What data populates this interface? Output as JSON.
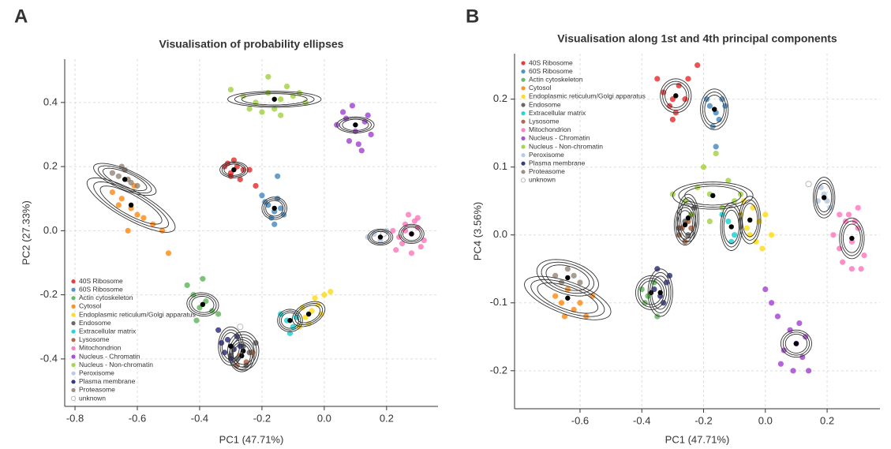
{
  "chart_data": [
    {
      "type": "scatter",
      "panel_label": "A",
      "title": "Visualisation of probability ellipses",
      "x_label": "PC1 (47.71%)",
      "y_label": "PC2 (27.33%)",
      "xlim": [
        -0.833,
        0.365
      ],
      "ylim": [
        -0.548,
        0.535
      ],
      "xticks": [
        -0.8,
        -0.6,
        -0.4,
        -0.2,
        {
          "value": 0,
          "label": "0.0"
        },
        0.2
      ],
      "yticks": [
        -0.4,
        -0.2,
        {
          "value": 0,
          "label": "0.0"
        },
        0.2,
        0.4
      ],
      "grid": true,
      "legend": "lower left",
      "ellipse_scales": [
        0.7,
        0.85,
        1
      ],
      "series": [
        {
          "name": "40S Ribosome",
          "color": "#e41a1c",
          "x": [
            -0.32,
            -0.3,
            -0.28,
            -0.26,
            -0.3,
            -0.27,
            -0.31,
            -0.24,
            -0.22,
            -0.29
          ],
          "y": [
            0.2,
            0.18,
            0.2,
            0.19,
            0.17,
            0.16,
            0.21,
            0.19,
            0.14,
            0.22
          ],
          "center": [
            -0.29,
            0.19
          ],
          "ellipse": [
            0.045,
            0,
            0,
            0.025
          ]
        },
        {
          "name": "60S Ribosome",
          "color": "#377eb8",
          "x": [
            -0.18,
            -0.16,
            -0.14,
            -0.17,
            -0.15,
            -0.19,
            -0.13,
            -0.16,
            -0.15,
            -0.2
          ],
          "y": [
            0.08,
            0.06,
            0.07,
            0.04,
            0.1,
            0.09,
            0.05,
            0.02,
            0.17,
            0.11
          ],
          "center": [
            -0.16,
            0.07
          ],
          "ellipse": [
            0.04,
            0,
            0,
            0.035
          ]
        },
        {
          "name": "Actin cytoskeleton",
          "color": "#4daf4a",
          "x": [
            -0.42,
            -0.4,
            -0.38,
            -0.36,
            -0.44,
            -0.39,
            -0.34,
            -0.41
          ],
          "y": [
            -0.2,
            -0.24,
            -0.22,
            -0.25,
            -0.17,
            -0.15,
            -0.26,
            -0.28
          ],
          "center": [
            -0.39,
            -0.23
          ],
          "ellipse": [
            0.05,
            -0.01,
            0.01,
            0.035
          ]
        },
        {
          "name": "Cytosol",
          "color": "#ff7f00",
          "x": [
            -0.68,
            -0.65,
            -0.62,
            -0.6,
            -0.58,
            -0.55,
            -0.63,
            -0.66,
            -0.52,
            -0.5,
            -0.61
          ],
          "y": [
            0.12,
            0.1,
            0.07,
            0.05,
            0.04,
            0.02,
            0.0,
            0.08,
            0.0,
            -0.07,
            0.14
          ],
          "center": [
            -0.62,
            0.08
          ],
          "ellipse": [
            0.14,
            -0.075,
            0.02,
            0.04
          ]
        },
        {
          "name": "Endoplasmic reticulum/Golgi apparatus",
          "color": "#ffd700",
          "x": [
            -0.06,
            -0.04,
            -0.02,
            0.0,
            -0.05,
            -0.03,
            -0.08,
            0.02,
            -0.01,
            -0.07
          ],
          "y": [
            -0.27,
            -0.25,
            -0.23,
            -0.2,
            -0.29,
            -0.21,
            -0.3,
            -0.19,
            -0.26,
            -0.24
          ],
          "center": [
            -0.05,
            -0.26
          ],
          "ellipse": [
            0.05,
            0.025,
            -0.015,
            0.03
          ]
        },
        {
          "name": "Endosome",
          "color": "#4d4d4d",
          "x": [
            -0.26,
            -0.24,
            -0.28,
            -0.22,
            -0.3,
            -0.25
          ],
          "y": [
            -0.36,
            -0.38,
            -0.4,
            -0.35,
            -0.39,
            -0.42
          ],
          "center": [
            -0.26,
            -0.375
          ],
          "ellipse": [
            0.05,
            0,
            0,
            0.06
          ]
        },
        {
          "name": "Extracellular matrix",
          "color": "#00ced1",
          "x": [
            -0.12,
            -0.1,
            -0.14,
            -0.09,
            -0.11
          ],
          "y": [
            -0.28,
            -0.3,
            -0.26,
            -0.27,
            -0.32
          ],
          "center": [
            -0.11,
            -0.28
          ],
          "ellipse": [
            0.04,
            0,
            0,
            0.035
          ]
        },
        {
          "name": "Lysosome",
          "color": "#a0522d",
          "x": [
            -0.27,
            -0.25,
            -0.23,
            -0.28
          ],
          "y": [
            -0.39,
            -0.41,
            -0.38,
            -0.42
          ],
          "center": [
            -0.265,
            -0.39
          ],
          "ellipse": [
            0.04,
            0,
            0,
            0.05
          ]
        },
        {
          "name": "Mitochondrion",
          "color": "#ff69b4",
          "x": [
            0.22,
            0.24,
            0.26,
            0.28,
            0.3,
            0.32,
            0.25,
            0.27,
            0.29,
            0.31,
            0.23,
            0.26,
            0.3,
            0.28
          ],
          "y": [
            0.0,
            -0.02,
            0.02,
            -0.01,
            0.01,
            -0.03,
            -0.04,
            0.05,
            0.03,
            -0.05,
            -0.06,
            0.0,
            0.04,
            -0.07
          ],
          "center": [
            0.28,
            -0.01
          ],
          "ellipse": [
            0.04,
            0,
            0,
            0.03
          ]
        },
        {
          "name": "Nucleus - Chromatin",
          "color": "#9932cc",
          "x": [
            0.04,
            0.07,
            0.1,
            0.13,
            0.15,
            0.08,
            0.11,
            0.06,
            0.14,
            0.12,
            0.09
          ],
          "y": [
            0.33,
            0.35,
            0.31,
            0.34,
            0.3,
            0.28,
            0.27,
            0.37,
            0.36,
            0.25,
            0.39
          ],
          "center": [
            0.1,
            0.33
          ],
          "ellipse": [
            0.06,
            0,
            0,
            0.025
          ]
        },
        {
          "name": "Nucleus - Non-chromatin",
          "color": "#9acd32",
          "x": [
            -0.3,
            -0.26,
            -0.22,
            -0.18,
            -0.14,
            -0.1,
            -0.06,
            -0.2,
            -0.16,
            -0.12,
            -0.24,
            -0.18,
            -0.08,
            -0.14
          ],
          "y": [
            0.44,
            0.42,
            0.4,
            0.43,
            0.41,
            0.42,
            0.4,
            0.37,
            0.38,
            0.45,
            0.38,
            0.48,
            0.43,
            0.36
          ],
          "center": [
            -0.16,
            0.41
          ],
          "ellipse": [
            0.15,
            0,
            0,
            0.025
          ]
        },
        {
          "name": "Peroxisome",
          "color": "#b0c4de",
          "x": [
            0.16,
            0.18,
            0.2,
            0.14
          ],
          "y": [
            -0.01,
            -0.03,
            0.0,
            -0.02
          ],
          "center": [
            0.18,
            -0.02
          ],
          "ellipse": [
            0.04,
            0,
            0,
            0.025
          ]
        },
        {
          "name": "Plasma membrane",
          "color": "#191970",
          "x": [
            -0.33,
            -0.31,
            -0.29,
            -0.32,
            -0.28,
            -0.3,
            -0.34,
            -0.27
          ],
          "y": [
            -0.35,
            -0.34,
            -0.37,
            -0.38,
            -0.33,
            -0.4,
            -0.31,
            -0.36
          ],
          "center": [
            -0.3,
            -0.36
          ],
          "ellipse": [
            0.04,
            0,
            0,
            0.06
          ]
        },
        {
          "name": "Proteasome",
          "color": "#8c7b6b",
          "x": [
            -0.68,
            -0.66,
            -0.64,
            -0.62,
            -0.6,
            -0.65,
            -0.63
          ],
          "y": [
            0.18,
            0.17,
            0.19,
            0.15,
            0.14,
            0.2,
            0.16
          ],
          "center": [
            -0.64,
            0.16
          ],
          "ellipse": [
            0.1,
            -0.04,
            0.01,
            0.03
          ]
        },
        {
          "name": "unknown",
          "color": "#ffffff",
          "x": [
            -0.27,
            0.19
          ],
          "y": [
            -0.3,
            -0.01
          ]
        }
      ]
    },
    {
      "type": "scatter",
      "panel_label": "B",
      "title": "Visualisation along 1st and 4th principal components",
      "x_label": "PC1 (47.71%)",
      "y_label": "PC4 (3.56%)",
      "xlim": [
        -0.812,
        0.371
      ],
      "ylim": [
        -0.256,
        0.267
      ],
      "xticks": [
        -0.6,
        -0.4,
        -0.2,
        {
          "value": 0,
          "label": "0.0"
        },
        0.2
      ],
      "yticks": [
        -0.2,
        -0.1,
        {
          "value": 0,
          "label": "0.0"
        },
        0.1,
        0.2
      ],
      "grid": true,
      "legend": "upper left",
      "ellipse_scales": [
        0.7,
        0.85,
        1
      ],
      "series": [
        {
          "name": "40S Ribosome",
          "color": "#e41a1c",
          "x": [
            -0.33,
            -0.3,
            -0.28,
            -0.26,
            -0.31,
            -0.29,
            -0.25,
            -0.35,
            -0.22,
            -0.3
          ],
          "y": [
            0.21,
            0.2,
            0.22,
            0.2,
            0.19,
            0.18,
            0.23,
            0.23,
            0.25,
            0.17
          ],
          "center": [
            -0.29,
            0.205
          ],
          "ellipse": [
            0.05,
            0,
            0,
            0.025
          ]
        },
        {
          "name": "60S Ribosome",
          "color": "#377eb8",
          "x": [
            -0.18,
            -0.16,
            -0.14,
            -0.17,
            -0.15,
            -0.13,
            -0.19,
            -0.16
          ],
          "y": [
            0.19,
            0.18,
            0.2,
            0.16,
            0.17,
            0.19,
            0.2,
            0.13
          ],
          "center": [
            -0.165,
            0.185
          ],
          "ellipse": [
            0.045,
            0,
            0,
            0.03
          ]
        },
        {
          "name": "Actin cytoskeleton",
          "color": "#4daf4a",
          "x": [
            -0.4,
            -0.38,
            -0.36,
            -0.39,
            -0.35
          ],
          "y": [
            -0.08,
            -0.09,
            -0.07,
            -0.1,
            -0.12
          ],
          "center": [
            -0.37,
            -0.085
          ],
          "ellipse": [
            0.05,
            0,
            0,
            0.025
          ]
        },
        {
          "name": "Cytosol",
          "color": "#ff7f00",
          "x": [
            -0.68,
            -0.66,
            -0.64,
            -0.62,
            -0.6,
            -0.58,
            -0.65,
            -0.56
          ],
          "y": [
            -0.09,
            -0.1,
            -0.08,
            -0.11,
            -0.1,
            -0.12,
            -0.12,
            -0.09
          ],
          "center": [
            -0.64,
            -0.093
          ],
          "ellipse": [
            0.14,
            -0.02,
            0,
            0.025
          ]
        },
        {
          "name": "Endoplasmic reticulum/Golgi apparatus",
          "color": "#ffd700",
          "x": [
            -0.08,
            -0.06,
            -0.04,
            -0.02,
            -0.05,
            -0.03,
            -0.07,
            0.0,
            0.02,
            -0.01
          ],
          "y": [
            0.03,
            0.01,
            0.04,
            0.02,
            0.0,
            -0.01,
            0.05,
            0.03,
            0.0,
            -0.02
          ],
          "center": [
            -0.05,
            0.022
          ],
          "ellipse": [
            0.035,
            0,
            0,
            0.035
          ]
        },
        {
          "name": "Endosome",
          "color": "#4d4d4d",
          "x": [
            -0.26,
            -0.24,
            -0.28,
            -0.23,
            -0.25
          ],
          "y": [
            0.02,
            0.03,
            0.01,
            0.04,
            0.0
          ],
          "center": [
            -0.25,
            0.025
          ],
          "ellipse": [
            0.035,
            0,
            0,
            0.035
          ]
        },
        {
          "name": "Extracellular matrix",
          "color": "#00ced1",
          "x": [
            -0.12,
            -0.1,
            -0.14,
            -0.11
          ],
          "y": [
            0.02,
            0.0,
            0.03,
            -0.01
          ],
          "center": [
            -0.11,
            0.012
          ],
          "ellipse": [
            0.035,
            0,
            0,
            0.035
          ]
        },
        {
          "name": "Lysosome",
          "color": "#a0522d",
          "x": [
            -0.27,
            -0.25,
            -0.28,
            -0.24,
            -0.26
          ],
          "y": [
            0.01,
            0.02,
            0.0,
            0.01,
            -0.01
          ],
          "center": [
            -0.26,
            0.015
          ],
          "ellipse": [
            0.035,
            0,
            0,
            0.03
          ]
        },
        {
          "name": "Mitochondrion",
          "color": "#ff69b4",
          "x": [
            0.22,
            0.24,
            0.26,
            0.28,
            0.3,
            0.32,
            0.25,
            0.27,
            0.29,
            0.31,
            0.24,
            0.28,
            0.3
          ],
          "y": [
            0.0,
            -0.02,
            0.02,
            -0.01,
            0.01,
            -0.03,
            -0.04,
            0.03,
            0.02,
            -0.05,
            0.03,
            -0.05,
            0.04
          ],
          "center": [
            0.28,
            -0.005
          ],
          "ellipse": [
            0.04,
            0,
            0,
            0.03
          ]
        },
        {
          "name": "Nucleus - Chromatin",
          "color": "#9932cc",
          "x": [
            0.0,
            0.04,
            0.08,
            0.1,
            0.12,
            0.06,
            0.09,
            0.14,
            0.11,
            0.05,
            0.13,
            0.02
          ],
          "y": [
            -0.08,
            -0.12,
            -0.14,
            -0.16,
            -0.18,
            -0.17,
            -0.2,
            -0.2,
            -0.13,
            -0.19,
            -0.15,
            -0.1
          ],
          "center": [
            0.1,
            -0.16
          ],
          "ellipse": [
            0.05,
            0,
            0,
            0.02
          ]
        },
        {
          "name": "Nucleus - Non-chromatin",
          "color": "#9acd32",
          "x": [
            -0.3,
            -0.26,
            -0.22,
            -0.18,
            -0.14,
            -0.1,
            -0.2,
            -0.16,
            -0.12,
            -0.24,
            -0.18,
            -0.08
          ],
          "y": [
            0.06,
            0.05,
            0.07,
            0.06,
            0.04,
            0.05,
            0.1,
            0.12,
            0.08,
            0.03,
            0.02,
            0.06
          ],
          "center": [
            -0.17,
            0.058
          ],
          "ellipse": [
            0.13,
            0,
            0,
            0.02
          ]
        },
        {
          "name": "Peroxisome",
          "color": "#b0c4de",
          "x": [
            0.17,
            0.19,
            0.21,
            0.18,
            0.2
          ],
          "y": [
            0.05,
            0.06,
            0.04,
            0.07,
            0.05
          ],
          "center": [
            0.19,
            0.055
          ],
          "ellipse": [
            0.035,
            0,
            0,
            0.03
          ]
        },
        {
          "name": "Plasma membrane",
          "color": "#191970",
          "x": [
            -0.36,
            -0.34,
            -0.32,
            -0.33,
            -0.31,
            -0.35
          ],
          "y": [
            -0.08,
            -0.09,
            -0.07,
            -0.1,
            -0.06,
            -0.05
          ],
          "center": [
            -0.34,
            -0.085
          ],
          "ellipse": [
            0.04,
            0,
            0,
            0.035
          ]
        },
        {
          "name": "Proteasome",
          "color": "#8c7b6b",
          "x": [
            -0.68,
            -0.66,
            -0.64,
            -0.62,
            -0.6
          ],
          "y": [
            -0.06,
            -0.07,
            -0.05,
            -0.06,
            -0.07
          ],
          "center": [
            -0.64,
            -0.063
          ],
          "ellipse": [
            0.1,
            -0.01,
            0,
            0.025
          ]
        },
        {
          "name": "unknown",
          "color": "#ffffff",
          "x": [
            0.14
          ],
          "y": [
            0.075
          ]
        }
      ]
    }
  ]
}
